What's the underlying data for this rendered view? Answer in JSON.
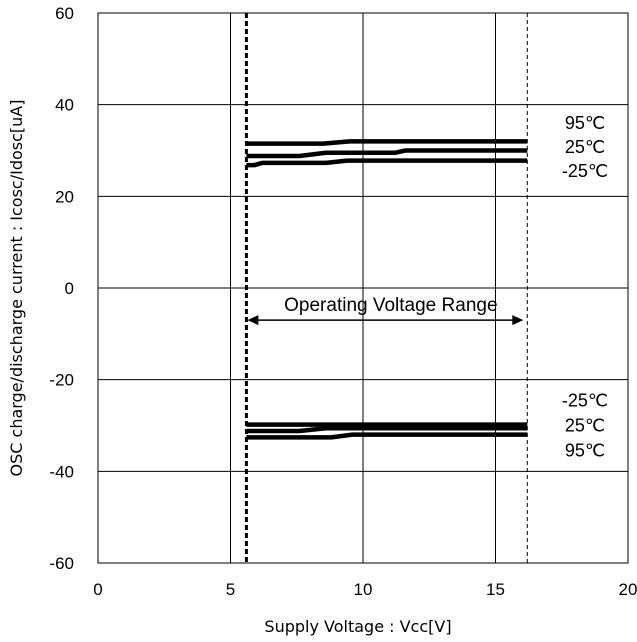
{
  "chart_data": {
    "type": "line",
    "title": "",
    "xlabel": "Supply Voltage : Vcc[V]",
    "ylabel": "OSC charge/discharge current : Icosc/Idosc[uA]",
    "xlim": [
      0,
      20
    ],
    "ylim": [
      -60,
      60
    ],
    "xticks": [
      0,
      5,
      10,
      15,
      20
    ],
    "xtick_labels": [
      "0",
      "5",
      "10",
      "15",
      "20"
    ],
    "yticks": [
      60,
      40,
      20,
      0,
      -20,
      -40,
      -60
    ],
    "ytick_labels": [
      "60",
      "40",
      "20",
      "0",
      "-20",
      "-40",
      "-60"
    ],
    "grid": true,
    "legend": "none",
    "line_color": "#000000",
    "series": [
      {
        "label_ref": "charge_95",
        "x": [
          5.6,
          8.5,
          9.5,
          16.2
        ],
        "y": [
          31.5,
          31.5,
          32,
          32
        ]
      },
      {
        "label_ref": "charge_25",
        "x": [
          5.6,
          7.6,
          8.6,
          11.2,
          11.6,
          16.2
        ],
        "y": [
          28.8,
          28.8,
          29.5,
          29.5,
          30,
          30
        ]
      },
      {
        "label_ref": "charge_m25",
        "x": [
          5.6,
          5.9,
          6.2,
          8.6,
          9.4,
          16.2
        ],
        "y": [
          26.8,
          26.8,
          27.3,
          27.3,
          27.8,
          27.8
        ]
      },
      {
        "label_ref": "discharge_m25",
        "x": [
          5.6,
          16.2
        ],
        "y": [
          -29.8,
          -29.8
        ]
      },
      {
        "label_ref": "discharge_25",
        "x": [
          5.6,
          7.6,
          8.6,
          16.2
        ],
        "y": [
          -31.2,
          -31.2,
          -30.6,
          -30.6
        ]
      },
      {
        "label_ref": "discharge_95",
        "x": [
          5.6,
          8.8,
          9.6,
          16.2
        ],
        "y": [
          -32.6,
          -32.6,
          -32,
          -32
        ]
      }
    ],
    "annotations": {
      "charge_95": "95℃",
      "charge_25": "25℃",
      "charge_m25": "-25℃",
      "discharge_m25": "-25℃",
      "discharge_25": "25℃",
      "discharge_95": "95℃",
      "range_label": "Operating Voltage Range"
    },
    "range_bounds": [
      5.6,
      16.2
    ],
    "range_arrow_y": -7
  }
}
